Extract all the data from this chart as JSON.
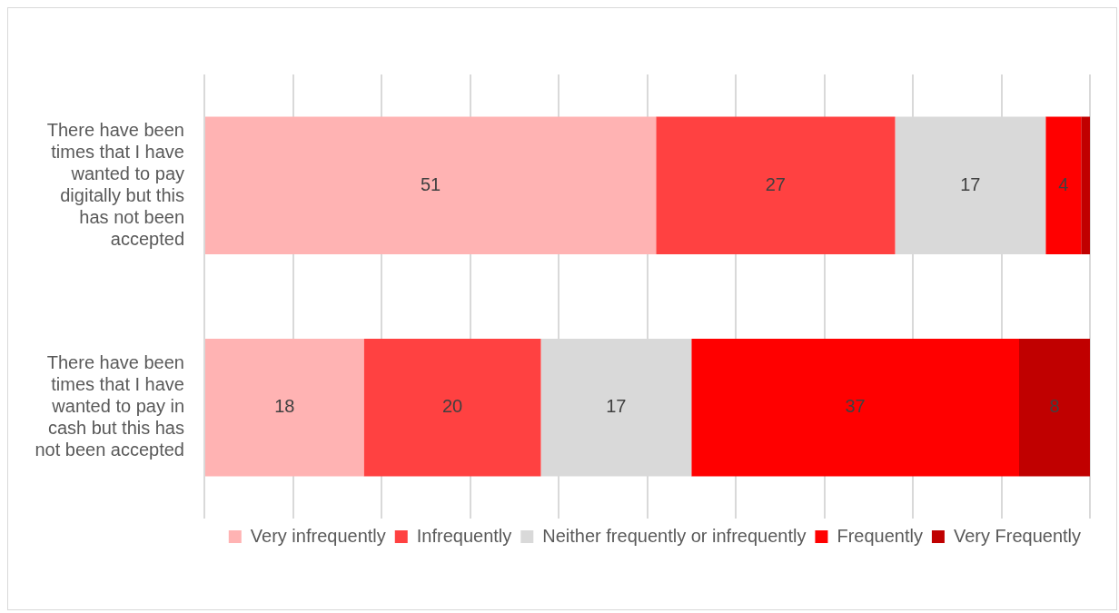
{
  "chart_data": {
    "type": "bar",
    "orientation": "horizontal",
    "stacked": true,
    "categories": [
      "There have been times that I have wanted to pay digitally but this has not been accepted",
      "There have been times that I have wanted to pay in cash but this has not been accepted"
    ],
    "series": [
      {
        "name": "Very infrequently",
        "color": "#ffb3b3",
        "values": [
          51,
          18
        ],
        "value_labels": [
          "51",
          "18"
        ]
      },
      {
        "name": "Infrequently",
        "color": "#ff4141",
        "values": [
          27,
          20
        ],
        "value_labels": [
          "27",
          "20"
        ]
      },
      {
        "name": "Neither frequently or infrequently",
        "color": "#d9d9d9",
        "values": [
          17,
          17
        ],
        "value_labels": [
          "17",
          "17"
        ]
      },
      {
        "name": "Frequently",
        "color": "#ff0000",
        "values": [
          4,
          37
        ],
        "value_labels": [
          "4",
          "37"
        ]
      },
      {
        "name": "Very Frequently",
        "color": "#c00000",
        "values": [
          1,
          8
        ],
        "value_labels": [
          null,
          "8"
        ]
      }
    ],
    "xlim": [
      0,
      100
    ],
    "xticks": [
      {
        "value": 0,
        "label": null
      },
      {
        "value": 10,
        "label": null
      },
      {
        "value": 20,
        "label": null
      },
      {
        "value": 30,
        "label": null
      },
      {
        "value": 40,
        "label": null
      },
      {
        "value": 50,
        "label": null
      },
      {
        "value": 60,
        "label": null
      },
      {
        "value": 70,
        "label": null
      },
      {
        "value": 80,
        "label": null
      },
      {
        "value": 90,
        "label": null
      },
      {
        "value": 100,
        "label": null
      }
    ],
    "tick_labels": "y",
    "grid": "x",
    "legend": "bottom"
  }
}
